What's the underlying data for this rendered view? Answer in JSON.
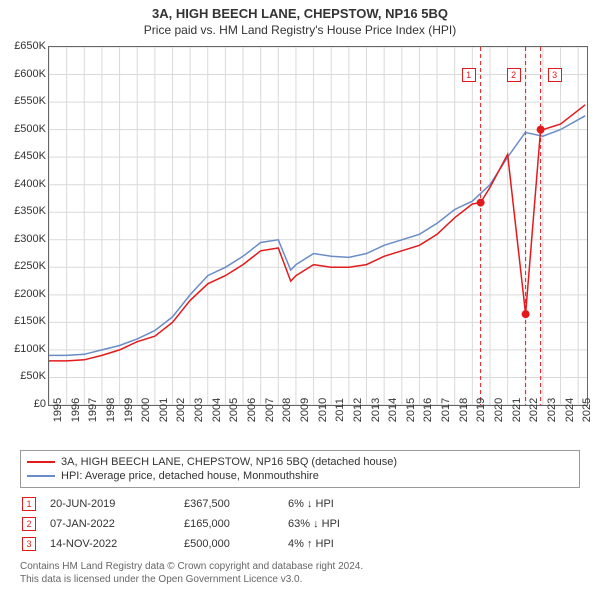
{
  "title": "3A, HIGH BEECH LANE, CHEPSTOW, NP16 5BQ",
  "subtitle": "Price paid vs. HM Land Registry's House Price Index (HPI)",
  "chart": {
    "type": "line",
    "background_color": "#ffffff",
    "grid_color": "#d9d9d9",
    "axis_color": "#666666",
    "xlim": [
      1995,
      2025.5
    ],
    "ylim": [
      0,
      650000
    ],
    "ytick_step": 50000,
    "ytick_labels": [
      "£0",
      "£50K",
      "£100K",
      "£150K",
      "£200K",
      "£250K",
      "£300K",
      "£350K",
      "£400K",
      "£450K",
      "£500K",
      "£550K",
      "£600K",
      "£650K"
    ],
    "xtick_step": 1,
    "xtick_labels": [
      "1995",
      "1996",
      "1997",
      "1998",
      "1999",
      "2000",
      "2001",
      "2002",
      "2003",
      "2004",
      "2005",
      "2006",
      "2007",
      "2008",
      "2009",
      "2010",
      "2011",
      "2012",
      "2013",
      "2014",
      "2015",
      "2016",
      "2017",
      "2018",
      "2019",
      "2020",
      "2021",
      "2022",
      "2023",
      "2024",
      "2025"
    ],
    "series": [
      {
        "name": "3A, HIGH BEECH LANE, CHEPSTOW, NP16 5BQ (detached house)",
        "color": "#e31a1c",
        "line_width": 1.5,
        "years": [
          1995,
          1996,
          1997,
          1998,
          1999,
          2000,
          2001,
          2002,
          2003,
          2004,
          2005,
          2006,
          2007,
          2008,
          2008.7,
          2009,
          2010,
          2011,
          2012,
          2013,
          2014,
          2015,
          2016,
          2017,
          2018,
          2019,
          2019.47,
          2020,
          2021,
          2022.02,
          2022.02,
          2022.87,
          2022.87,
          2023,
          2024,
          2025,
          2025.4
        ],
        "values": [
          80000,
          80000,
          82000,
          90000,
          100000,
          115000,
          125000,
          150000,
          190000,
          220000,
          235000,
          255000,
          280000,
          285000,
          225000,
          235000,
          255000,
          250000,
          250000,
          255000,
          270000,
          280000,
          290000,
          310000,
          340000,
          365000,
          367500,
          395000,
          455000,
          165000,
          165000,
          500000,
          500000,
          500000,
          510000,
          535000,
          545000
        ]
      },
      {
        "name": "HPI: Average price, detached house, Monmouthshire",
        "color": "#6a8cc7",
        "line_width": 1.5,
        "years": [
          1995,
          1996,
          1997,
          1998,
          1999,
          2000,
          2001,
          2002,
          2003,
          2004,
          2005,
          2006,
          2007,
          2008,
          2008.7,
          2009,
          2010,
          2011,
          2012,
          2013,
          2014,
          2015,
          2016,
          2017,
          2018,
          2019,
          2020,
          2021,
          2022,
          2023,
          2024,
          2025,
          2025.4
        ],
        "values": [
          90000,
          90000,
          92000,
          100000,
          108000,
          120000,
          135000,
          160000,
          200000,
          235000,
          250000,
          270000,
          295000,
          300000,
          245000,
          255000,
          275000,
          270000,
          268000,
          275000,
          290000,
          300000,
          310000,
          330000,
          355000,
          370000,
          400000,
          450000,
          495000,
          488000,
          500000,
          518000,
          525000
        ]
      }
    ],
    "event_lines": [
      {
        "year": 2019.47,
        "color": "#e31a1c",
        "dash": "4 3"
      },
      {
        "year": 2022.02,
        "color": "#e31a1c",
        "dash": "4 3"
      },
      {
        "year": 2022.87,
        "color": "#e31a1c",
        "dash": "4 3"
      }
    ],
    "event_dots": [
      {
        "year": 2019.47,
        "value": 367500,
        "color": "#e31a1c"
      },
      {
        "year": 2022.02,
        "value": 165000,
        "color": "#e31a1c"
      },
      {
        "year": 2022.87,
        "value": 500000,
        "color": "#e31a1c"
      }
    ],
    "event_markers": [
      {
        "label": "1",
        "year": 2019.47
      },
      {
        "label": "2",
        "year": 2022.02
      },
      {
        "label": "3",
        "year": 2022.87
      }
    ]
  },
  "legend": {
    "items": [
      {
        "color": "#e31a1c",
        "label": "3A, HIGH BEECH LANE, CHEPSTOW, NP16 5BQ (detached house)"
      },
      {
        "color": "#6a8cc7",
        "label": "HPI: Average price, detached house, Monmouthshire"
      }
    ]
  },
  "events": [
    {
      "n": "1",
      "date": "20-JUN-2019",
      "price": "£367,500",
      "delta": "6% ↓ HPI"
    },
    {
      "n": "2",
      "date": "07-JAN-2022",
      "price": "£165,000",
      "delta": "63% ↓ HPI"
    },
    {
      "n": "3",
      "date": "14-NOV-2022",
      "price": "£500,000",
      "delta": "4% ↑ HPI"
    }
  ],
  "footer": {
    "line1": "Contains HM Land Registry data © Crown copyright and database right 2024.",
    "line2": "This data is licensed under the Open Government Licence v3.0."
  }
}
